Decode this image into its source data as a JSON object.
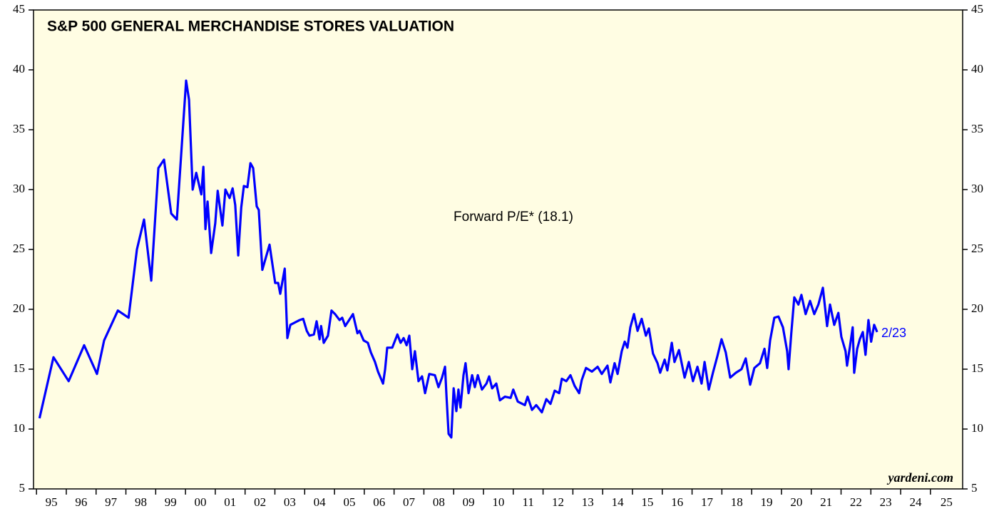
{
  "chart_data": {
    "type": "line",
    "title": "S&P 500 GENERAL MERCHANDISE STORES VALUATION",
    "annotations": [
      "Forward P/E* (18.1)",
      "2/23",
      "yardeni.com"
    ],
    "ylim": [
      5,
      45
    ],
    "yticks": [
      5,
      10,
      15,
      20,
      25,
      30,
      35,
      40,
      45
    ],
    "xlim": [
      1994.9,
      2026.08
    ],
    "xticks": [
      {
        "value": 1995,
        "label": "95"
      },
      {
        "value": 1996,
        "label": "96"
      },
      {
        "value": 1997,
        "label": "97"
      },
      {
        "value": 1998,
        "label": "98"
      },
      {
        "value": 1999,
        "label": "99"
      },
      {
        "value": 2000,
        "label": "00"
      },
      {
        "value": 2001,
        "label": "01"
      },
      {
        "value": 2002,
        "label": "02"
      },
      {
        "value": 2003,
        "label": "03"
      },
      {
        "value": 2004,
        "label": "04"
      },
      {
        "value": 2005,
        "label": "05"
      },
      {
        "value": 2006,
        "label": "06"
      },
      {
        "value": 2007,
        "label": "07"
      },
      {
        "value": 2008,
        "label": "08"
      },
      {
        "value": 2009,
        "label": "09"
      },
      {
        "value": 2010,
        "label": "10"
      },
      {
        "value": 2011,
        "label": "11"
      },
      {
        "value": 2012,
        "label": "12"
      },
      {
        "value": 2013,
        "label": "13"
      },
      {
        "value": 2014,
        "label": "14"
      },
      {
        "value": 2015,
        "label": "15"
      },
      {
        "value": 2016,
        "label": "16"
      },
      {
        "value": 2017,
        "label": "17"
      },
      {
        "value": 2018,
        "label": "18"
      },
      {
        "value": 2019,
        "label": "19"
      },
      {
        "value": 2020,
        "label": "20"
      },
      {
        "value": 2021,
        "label": "21"
      },
      {
        "value": 2022,
        "label": "22"
      },
      {
        "value": 2023,
        "label": "23"
      },
      {
        "value": 2024,
        "label": "24"
      },
      {
        "value": 2025,
        "label": "25"
      }
    ],
    "background": "#fffde3",
    "x": [
      1995.1,
      1995.57,
      1996.08,
      1996.6,
      1997.03,
      1997.27,
      1997.73,
      1998.09,
      1998.37,
      1998.61,
      1998.85,
      1999.09,
      1999.28,
      1999.52,
      1999.71,
      2000.02,
      2000.12,
      2000.24,
      2000.36,
      2000.53,
      2000.6,
      2000.67,
      2000.74,
      2000.86,
      2001.0,
      2001.08,
      2001.24,
      2001.34,
      2001.48,
      2001.58,
      2001.67,
      2001.77,
      2001.87,
      2001.96,
      2002.08,
      2002.18,
      2002.27,
      2002.39,
      2002.46,
      2002.58,
      2002.82,
      2003.01,
      2003.11,
      2003.18,
      2003.33,
      2003.42,
      2003.52,
      2003.83,
      2003.95,
      2004.07,
      2004.16,
      2004.31,
      2004.4,
      2004.5,
      2004.55,
      2004.64,
      2004.78,
      2004.9,
      2005.02,
      2005.17,
      2005.26,
      2005.36,
      2005.62,
      2005.77,
      2005.84,
      2005.98,
      2006.12,
      2006.22,
      2006.36,
      2006.46,
      2006.63,
      2006.7,
      2006.77,
      2006.94,
      2007.11,
      2007.22,
      2007.32,
      2007.42,
      2007.51,
      2007.61,
      2007.7,
      2007.82,
      2007.94,
      2008.04,
      2008.18,
      2008.37,
      2008.49,
      2008.61,
      2008.71,
      2008.76,
      2008.83,
      2008.92,
      2009.0,
      2009.09,
      2009.16,
      2009.23,
      2009.33,
      2009.4,
      2009.5,
      2009.62,
      2009.71,
      2009.81,
      2009.95,
      2010.1,
      2010.19,
      2010.29,
      2010.43,
      2010.55,
      2010.72,
      2010.91,
      2011.0,
      2011.15,
      2011.39,
      2011.48,
      2011.63,
      2011.77,
      2011.96,
      2012.11,
      2012.25,
      2012.39,
      2012.54,
      2012.63,
      2012.78,
      2012.92,
      2013.06,
      2013.21,
      2013.3,
      2013.44,
      2013.64,
      2013.83,
      2013.97,
      2014.16,
      2014.26,
      2014.4,
      2014.5,
      2014.64,
      2014.74,
      2014.83,
      2014.93,
      2015.05,
      2015.17,
      2015.31,
      2015.45,
      2015.55,
      2015.69,
      2015.84,
      2015.93,
      2016.08,
      2016.17,
      2016.32,
      2016.41,
      2016.56,
      2016.75,
      2016.89,
      2017.03,
      2017.18,
      2017.32,
      2017.42,
      2017.56,
      2017.7,
      2017.85,
      2017.99,
      2018.13,
      2018.28,
      2018.47,
      2018.66,
      2018.8,
      2018.95,
      2019.09,
      2019.28,
      2019.43,
      2019.52,
      2019.62,
      2019.76,
      2019.9,
      2020.05,
      2020.19,
      2020.24,
      2020.33,
      2020.43,
      2020.57,
      2020.67,
      2020.81,
      2020.96,
      2021.1,
      2021.24,
      2021.39,
      2021.53,
      2021.63,
      2021.77,
      2021.91,
      2022.01,
      2022.15,
      2022.2,
      2022.3,
      2022.39,
      2022.44,
      2022.54,
      2022.63,
      2022.73,
      2022.82,
      2022.92,
      2023.01,
      2023.11,
      2023.21
    ],
    "series": [
      {
        "name": "Forward P/E",
        "color": "#0000ff",
        "values": [
          10.9,
          16.0,
          14.0,
          17.0,
          14.6,
          17.4,
          19.9,
          19.3,
          25.0,
          27.5,
          22.4,
          31.8,
          32.5,
          28.0,
          27.5,
          39.1,
          37.5,
          30.0,
          31.4,
          29.6,
          31.9,
          26.7,
          29.0,
          24.7,
          27.2,
          29.9,
          27.0,
          30.0,
          29.3,
          30.1,
          28.7,
          24.5,
          28.5,
          30.3,
          30.2,
          32.2,
          31.8,
          28.6,
          28.3,
          23.3,
          25.4,
          22.2,
          22.2,
          21.3,
          23.4,
          17.6,
          18.7,
          19.1,
          19.2,
          18.2,
          17.8,
          17.9,
          19.0,
          17.5,
          18.6,
          17.2,
          17.8,
          19.9,
          19.6,
          19.1,
          19.3,
          18.6,
          19.6,
          18.0,
          18.2,
          17.4,
          17.2,
          16.4,
          15.6,
          14.8,
          13.8,
          15.0,
          16.8,
          16.8,
          17.9,
          17.2,
          17.6,
          17.0,
          17.8,
          15.0,
          16.5,
          14.0,
          14.4,
          13.0,
          14.6,
          14.5,
          13.5,
          14.3,
          15.2,
          12.7,
          9.6,
          9.3,
          13.4,
          11.5,
          13.3,
          11.8,
          14.5,
          15.5,
          13.0,
          14.5,
          13.5,
          14.5,
          13.3,
          13.8,
          14.4,
          13.4,
          13.8,
          12.4,
          12.7,
          12.6,
          13.3,
          12.3,
          12.0,
          12.7,
          11.6,
          12.0,
          11.4,
          12.5,
          12.1,
          13.2,
          13.0,
          14.2,
          14.0,
          14.5,
          13.6,
          13.0,
          14.1,
          15.1,
          14.8,
          15.2,
          14.6,
          15.3,
          13.9,
          15.5,
          14.6,
          16.5,
          17.3,
          16.8,
          18.5,
          19.6,
          18.2,
          19.2,
          17.8,
          18.4,
          16.3,
          15.5,
          14.7,
          15.8,
          14.9,
          17.2,
          15.6,
          16.6,
          14.3,
          15.6,
          14.0,
          15.2,
          13.8,
          15.6,
          13.3,
          14.7,
          16.1,
          17.5,
          16.4,
          14.3,
          14.7,
          15.0,
          15.9,
          13.7,
          15.1,
          15.5,
          16.7,
          15.1,
          17.4,
          19.3,
          19.4,
          18.5,
          16.5,
          15.0,
          18.0,
          21.0,
          20.4,
          21.2,
          19.6,
          20.7,
          19.6,
          20.4,
          21.8,
          18.6,
          20.4,
          18.7,
          19.7,
          17.7,
          16.5,
          15.3,
          16.9,
          18.5,
          14.7,
          16.7,
          17.5,
          18.1,
          16.2,
          19.1,
          17.3,
          18.7,
          18.1
        ]
      }
    ]
  }
}
